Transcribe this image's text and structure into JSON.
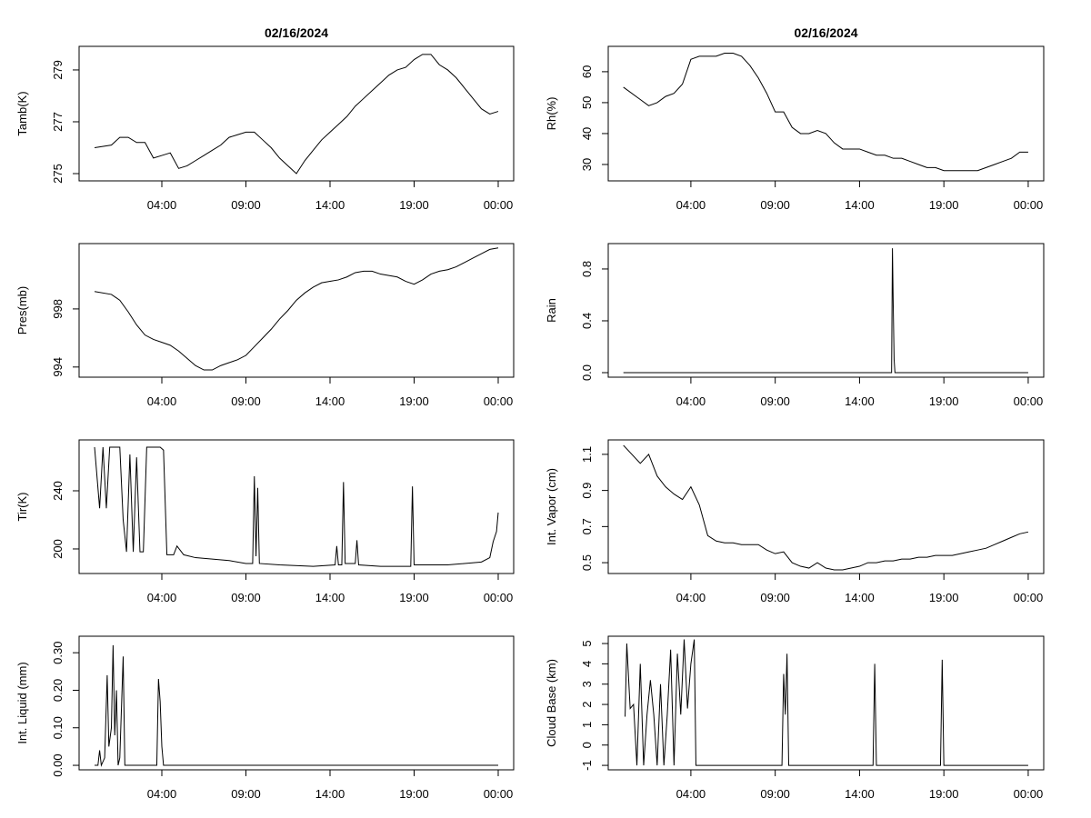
{
  "chart_data": [
    {
      "type": "line",
      "title": "02/16/2024",
      "ylabel": "Tamb(K)",
      "color": "#000000",
      "x": [
        0,
        1,
        1.5,
        2,
        2.5,
        3,
        3.5,
        4,
        4.5,
        5,
        5.5,
        6,
        6.5,
        7,
        7.5,
        8,
        8.5,
        9,
        9.5,
        10,
        10.5,
        11,
        11.5,
        12,
        12.5,
        13,
        13.5,
        14,
        14.5,
        15,
        15.5,
        16,
        16.5,
        17,
        17.5,
        18,
        18.5,
        19,
        19.5,
        20,
        20.5,
        21,
        21.5,
        22,
        22.5,
        23,
        23.5,
        24
      ],
      "values": [
        276.0,
        276.1,
        276.4,
        276.4,
        276.2,
        276.2,
        275.6,
        275.7,
        275.8,
        275.2,
        275.3,
        275.5,
        275.7,
        275.9,
        276.1,
        276.4,
        276.5,
        276.6,
        276.6,
        276.3,
        276.0,
        275.6,
        275.3,
        275.0,
        275.5,
        275.9,
        276.3,
        276.6,
        276.9,
        277.2,
        277.6,
        277.9,
        278.2,
        278.5,
        278.8,
        279.0,
        279.1,
        279.4,
        279.6,
        279.6,
        279.2,
        279.0,
        278.7,
        278.3,
        277.9,
        277.5,
        277.3,
        277.4
      ],
      "xlim": [
        -0.92,
        24.92
      ],
      "xticks": [
        {
          "value": 4,
          "label": "04:00"
        },
        {
          "value": 9,
          "label": "09:00"
        },
        {
          "value": 14,
          "label": "14:00"
        },
        {
          "value": 19,
          "label": "19:00"
        },
        {
          "value": 24,
          "label": "00:00"
        }
      ],
      "ylim": [
        274.72,
        279.91
      ],
      "yticks": [
        275,
        277,
        279
      ]
    },
    {
      "type": "line",
      "title": "02/16/2024",
      "ylabel": "Rh(%)",
      "color": "#000000",
      "x": [
        0,
        1,
        1.5,
        2,
        2.5,
        3,
        3.5,
        4,
        4.5,
        5,
        5.5,
        6,
        6.5,
        7,
        7.5,
        8,
        8.5,
        9,
        9.5,
        10,
        10.5,
        11,
        11.5,
        12,
        12.5,
        13,
        13.5,
        14,
        14.5,
        15,
        15.5,
        16,
        16.5,
        17,
        17.5,
        18,
        18.5,
        19,
        19.5,
        20,
        20.5,
        21,
        21.5,
        22,
        22.5,
        23,
        23.5,
        24
      ],
      "values": [
        55,
        51,
        49,
        50,
        52,
        53,
        56,
        64,
        65,
        65,
        65,
        66,
        66,
        65,
        62,
        58,
        53,
        47,
        47,
        42,
        40,
        40,
        41,
        40,
        37,
        35,
        35,
        35,
        34,
        33,
        33,
        32,
        32,
        31,
        30,
        29,
        29,
        28,
        28,
        28,
        28,
        28,
        29,
        30,
        31,
        32,
        34,
        34
      ],
      "xlim": [
        -0.9,
        24.92
      ],
      "xticks": [
        {
          "value": 4,
          "label": "04:00"
        },
        {
          "value": 9,
          "label": "09:00"
        },
        {
          "value": 14,
          "label": "14:00"
        },
        {
          "value": 19,
          "label": "19:00"
        },
        {
          "value": 24,
          "label": "00:00"
        }
      ],
      "ylim": [
        24.7,
        68.2
      ],
      "yticks": [
        30,
        40,
        50,
        60
      ]
    },
    {
      "type": "line",
      "ylabel": "Pres(mb)",
      "color": "#000000",
      "x": [
        0,
        1,
        1.5,
        2,
        2.5,
        3,
        3.5,
        4,
        4.5,
        5,
        5.5,
        6,
        6.5,
        7,
        7.5,
        8,
        8.5,
        9,
        9.5,
        10,
        10.5,
        11,
        11.5,
        12,
        12.5,
        13,
        13.5,
        14,
        14.5,
        15,
        15.5,
        16,
        16.5,
        17,
        17.5,
        18,
        18.5,
        19,
        19.5,
        20,
        20.5,
        21,
        21.5,
        22,
        22.5,
        23,
        23.5,
        24
      ],
      "values": [
        999.2,
        999.0,
        998.6,
        997.8,
        996.9,
        996.2,
        995.9,
        995.7,
        995.5,
        995.1,
        994.6,
        994.1,
        993.8,
        993.8,
        994.1,
        994.3,
        994.5,
        994.8,
        995.4,
        996.0,
        996.6,
        997.3,
        997.9,
        998.6,
        999.1,
        999.5,
        999.8,
        999.9,
        1000.0,
        1000.2,
        1000.5,
        1000.6,
        1000.6,
        1000.4,
        1000.3,
        1000.2,
        999.9,
        999.7,
        1000.0,
        1000.4,
        1000.6,
        1000.7,
        1000.9,
        1001.2,
        1001.5,
        1001.8,
        1002.1,
        1002.2
      ],
      "xlim": [
        -0.92,
        24.92
      ],
      "xticks": [
        {
          "value": 4,
          "label": "04:00"
        },
        {
          "value": 9,
          "label": "09:00"
        },
        {
          "value": 14,
          "label": "14:00"
        },
        {
          "value": 19,
          "label": "19:00"
        },
        {
          "value": 24,
          "label": "00:00"
        }
      ],
      "ylim": [
        993.3,
        1002.5
      ],
      "yticks": [
        994,
        998
      ]
    },
    {
      "type": "line",
      "ylabel": "Rain",
      "color": "#000000",
      "x": [
        0,
        15.9,
        15.95,
        16.0,
        16.05,
        16.1,
        24
      ],
      "values": [
        0,
        0,
        0.96,
        0.5,
        0.1,
        0,
        0
      ],
      "xlim": [
        -0.9,
        24.92
      ],
      "xticks": [
        {
          "value": 4,
          "label": "04:00"
        },
        {
          "value": 9,
          "label": "09:00"
        },
        {
          "value": 14,
          "label": "14:00"
        },
        {
          "value": 19,
          "label": "19:00"
        },
        {
          "value": 24,
          "label": "00:00"
        }
      ],
      "ylim": [
        -0.035,
        0.996
      ],
      "yticks": [
        {
          "value": 0,
          "label": "0.0"
        },
        {
          "value": 0.4,
          "label": "0.4"
        },
        {
          "value": 0.8,
          "label": "0.8"
        }
      ]
    },
    {
      "type": "line",
      "ylabel": "Tir(K)",
      "color": "#000000",
      "x": [
        0,
        0.3,
        0.5,
        0.7,
        0.9,
        1.5,
        1.7,
        1.9,
        2.1,
        2.3,
        2.5,
        2.7,
        2.9,
        3.1,
        3.3,
        3.6,
        3.9,
        4.1,
        4.3,
        4.7,
        4.9,
        5.3,
        6,
        7,
        8,
        9,
        9.4,
        9.5,
        9.6,
        9.7,
        9.8,
        11,
        13,
        14.3,
        14.4,
        14.5,
        14.7,
        14.8,
        14.9,
        15.5,
        15.6,
        15.7,
        17,
        18.8,
        18.9,
        19.0,
        21,
        23,
        23.5,
        23.7,
        23.9,
        24
      ],
      "values": [
        270,
        228,
        270,
        228,
        270,
        270,
        220,
        198,
        265,
        198,
        263,
        198,
        198,
        270,
        270,
        270,
        270,
        268,
        196,
        196,
        202,
        196,
        194,
        193,
        192,
        190,
        190,
        250,
        195,
        242,
        190,
        189,
        188,
        189,
        202,
        189,
        189,
        246,
        190,
        190,
        206,
        189,
        188,
        188,
        243,
        189,
        189,
        191,
        194,
        205,
        212,
        225
      ],
      "xlim": [
        -0.92,
        24.92
      ],
      "xticks": [
        {
          "value": 4,
          "label": "04:00"
        },
        {
          "value": 9,
          "label": "09:00"
        },
        {
          "value": 14,
          "label": "14:00"
        },
        {
          "value": 19,
          "label": "19:00"
        },
        {
          "value": 24,
          "label": "00:00"
        }
      ],
      "ylim": [
        183.1,
        275
      ],
      "yticks": [
        200,
        240
      ]
    },
    {
      "type": "line",
      "ylabel": "Int. Vapor (cm)",
      "color": "#000000",
      "x": [
        0,
        1,
        1.5,
        2,
        2.5,
        3,
        3.5,
        4,
        4.5,
        5,
        5.5,
        6,
        6.5,
        7,
        7.5,
        8,
        8.5,
        9,
        9.5,
        10,
        10.5,
        11,
        11.5,
        12,
        12.5,
        13,
        13.5,
        14,
        14.5,
        15,
        15.5,
        16,
        16.5,
        17,
        17.5,
        18,
        18.5,
        19,
        19.5,
        20,
        20.5,
        21,
        21.5,
        22,
        22.5,
        23,
        23.5,
        24
      ],
      "values": [
        1.15,
        1.05,
        1.1,
        0.98,
        0.92,
        0.88,
        0.85,
        0.92,
        0.82,
        0.65,
        0.62,
        0.61,
        0.61,
        0.6,
        0.6,
        0.6,
        0.57,
        0.55,
        0.56,
        0.5,
        0.48,
        0.47,
        0.5,
        0.47,
        0.46,
        0.46,
        0.47,
        0.48,
        0.5,
        0.5,
        0.51,
        0.51,
        0.52,
        0.52,
        0.53,
        0.53,
        0.54,
        0.54,
        0.54,
        0.55,
        0.56,
        0.57,
        0.58,
        0.6,
        0.62,
        0.64,
        0.66,
        0.67
      ],
      "xlim": [
        -0.9,
        24.92
      ],
      "xticks": [
        {
          "value": 4,
          "label": "04:00"
        },
        {
          "value": 9,
          "label": "09:00"
        },
        {
          "value": 14,
          "label": "14:00"
        },
        {
          "value": 19,
          "label": "19:00"
        },
        {
          "value": 24,
          "label": "00:00"
        }
      ],
      "ylim": [
        0.44,
        1.18
      ],
      "yticks": [
        0.5,
        0.7,
        0.9,
        1.1
      ]
    },
    {
      "type": "line",
      "ylabel": "Int. Liquid (mm)",
      "color": "#000000",
      "x": [
        0,
        0.2,
        0.3,
        0.4,
        0.6,
        0.75,
        0.85,
        1.0,
        1.1,
        1.2,
        1.3,
        1.4,
        1.5,
        1.7,
        1.8,
        3.7,
        3.8,
        3.9,
        4.0,
        4.1,
        24
      ],
      "values": [
        0,
        0,
        0.04,
        0,
        0.02,
        0.24,
        0.05,
        0.1,
        0.32,
        0.08,
        0.2,
        0,
        0.02,
        0.29,
        0,
        0,
        0.23,
        0.17,
        0.05,
        0,
        0
      ],
      "xlim": [
        -0.92,
        24.92
      ],
      "xticks": [
        {
          "value": 4,
          "label": "04:00"
        },
        {
          "value": 9,
          "label": "09:00"
        },
        {
          "value": 14,
          "label": "14:00"
        },
        {
          "value": 19,
          "label": "19:00"
        },
        {
          "value": 24,
          "label": "00:00"
        }
      ],
      "ylim": [
        -0.012,
        0.344
      ],
      "yticks": [
        {
          "value": 0,
          "label": "0.00"
        },
        {
          "value": 0.1,
          "label": "0.10"
        },
        {
          "value": 0.2,
          "label": "0.20"
        },
        {
          "value": 0.3,
          "label": "0.30"
        }
      ]
    },
    {
      "type": "line",
      "ylabel": "Cloud Base (km)",
      "color": "#000000",
      "x": [
        0.1,
        0.2,
        0.4,
        0.6,
        0.8,
        1.0,
        1.2,
        1.4,
        1.6,
        1.8,
        2.0,
        2.2,
        2.4,
        2.6,
        2.8,
        3.0,
        3.2,
        3.4,
        3.6,
        3.8,
        4.0,
        4.2,
        4.3,
        9.4,
        9.5,
        9.6,
        9.7,
        9.8,
        14.8,
        14.9,
        15.0,
        18.8,
        18.9,
        19.0,
        24
      ],
      "values": [
        1.4,
        5,
        1.8,
        2,
        -1,
        4,
        -1,
        1.5,
        3.2,
        1.5,
        -1,
        3,
        -1,
        1.5,
        4.7,
        -1,
        4.5,
        1.5,
        5.2,
        1.8,
        4,
        5.2,
        -1,
        -1,
        3.5,
        1.5,
        4.5,
        -1,
        -1,
        4,
        -1,
        -1,
        4.2,
        -1,
        -1
      ],
      "xlim": [
        -0.9,
        24.92
      ],
      "xticks": [
        {
          "value": 4,
          "label": "04:00"
        },
        {
          "value": 9,
          "label": "09:00"
        },
        {
          "value": 14,
          "label": "14:00"
        },
        {
          "value": 19,
          "label": "19:00"
        },
        {
          "value": 24,
          "label": "00:00"
        }
      ],
      "ylim": [
        -1.22,
        5.36
      ],
      "yticks": [
        -1,
        0,
        1,
        2,
        3,
        4,
        5
      ]
    }
  ]
}
